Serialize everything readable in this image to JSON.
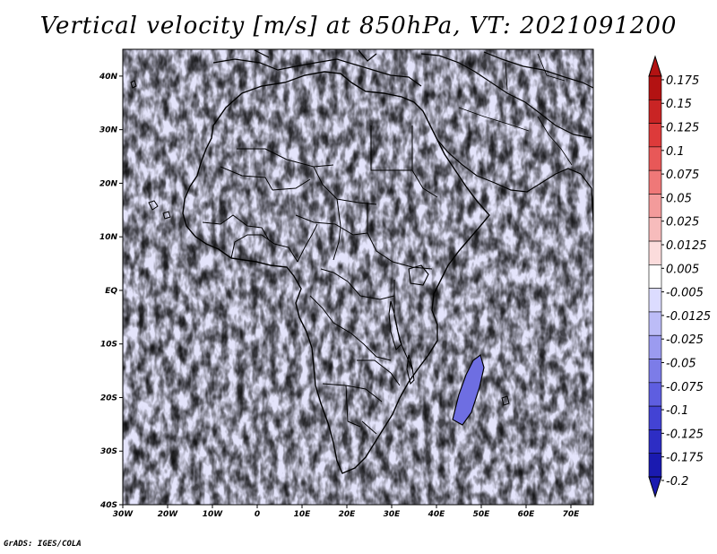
{
  "title": "Vertical velocity [m/s] at 850hPa, VT: 2021091200",
  "footer": "GrADS: IGES/COLA",
  "map": {
    "variable": "Vertical velocity",
    "units": "m/s",
    "level": "850hPa",
    "valid_time": "2021091200",
    "lon_range": [
      -30,
      75
    ],
    "lat_range": [
      -40,
      45
    ],
    "lon_ticks": [
      {
        "value": -30,
        "label": "30W"
      },
      {
        "value": -20,
        "label": "20W"
      },
      {
        "value": -10,
        "label": "10W"
      },
      {
        "value": 0,
        "label": "0"
      },
      {
        "value": 10,
        "label": "10E"
      },
      {
        "value": 20,
        "label": "20E"
      },
      {
        "value": 30,
        "label": "30E"
      },
      {
        "value": 40,
        "label": "40E"
      },
      {
        "value": 50,
        "label": "50E"
      },
      {
        "value": 60,
        "label": "60E"
      },
      {
        "value": 70,
        "label": "70E"
      }
    ],
    "lat_ticks": [
      {
        "value": 40,
        "label": "40N"
      },
      {
        "value": 30,
        "label": "30N"
      },
      {
        "value": 20,
        "label": "20N"
      },
      {
        "value": 10,
        "label": "10N"
      },
      {
        "value": 0,
        "label": "EQ"
      },
      {
        "value": -10,
        "label": "10S"
      },
      {
        "value": -20,
        "label": "20S"
      },
      {
        "value": -30,
        "label": "30S"
      },
      {
        "value": -40,
        "label": "40S"
      }
    ]
  },
  "colorbar": {
    "labels": [
      "0.175",
      "0.15",
      "0.125",
      "0.1",
      "0.075",
      "0.05",
      "0.025",
      "0.0125",
      "0.005",
      "-0.005",
      "-0.0125",
      "-0.025",
      "-0.05",
      "-0.075",
      "-0.1",
      "-0.125",
      "-0.175",
      "-0.2"
    ],
    "colors": [
      "#b31212",
      "#c92424",
      "#dd3a3a",
      "#e85858",
      "#ef7878",
      "#f39b9b",
      "#f7bcbc",
      "#fbdcdc",
      "#ffffff",
      "#dcdcff",
      "#bcbcf7",
      "#9b9bf0",
      "#7c7ce8",
      "#5e5ee0",
      "#4343d4",
      "#2d2dc4",
      "#1a1ab0"
    ]
  }
}
